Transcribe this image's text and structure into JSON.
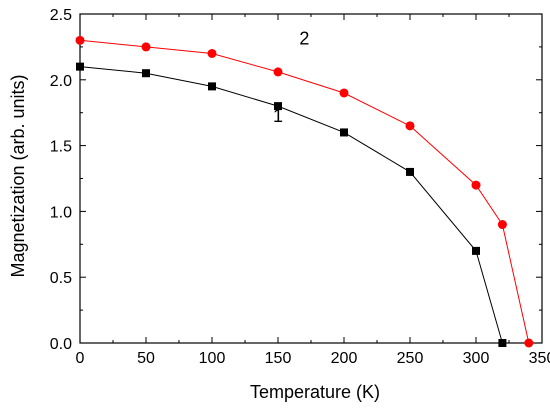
{
  "chart_data": {
    "type": "line",
    "xlabel": "Temperature (K)",
    "ylabel": "Magnetization (arb. units)",
    "xlim": [
      0,
      350
    ],
    "ylim": [
      0,
      2.5
    ],
    "xticks": [
      0,
      50,
      100,
      150,
      200,
      250,
      300,
      350
    ],
    "yticks": [
      0.0,
      0.5,
      1.0,
      1.5,
      2.0,
      2.5
    ],
    "xtick_labels": [
      "0",
      "50",
      "100",
      "150",
      "200",
      "250",
      "300",
      "350"
    ],
    "ytick_labels": [
      "0.0",
      "0.5",
      "1.0",
      "1.5",
      "2.0",
      "2.5"
    ],
    "grid": false,
    "legend": "none",
    "series": [
      {
        "name": "1",
        "color": "#000000",
        "marker": "square",
        "x": [
          0,
          50,
          100,
          150,
          200,
          250,
          300,
          320
        ],
        "y": [
          2.1,
          2.05,
          1.95,
          1.8,
          1.6,
          1.3,
          0.7,
          0.0
        ]
      },
      {
        "name": "2",
        "color": "#ff0000",
        "marker": "circle",
        "x": [
          0,
          50,
          100,
          150,
          200,
          250,
          300,
          320,
          340
        ],
        "y": [
          2.3,
          2.25,
          2.2,
          2.06,
          1.9,
          1.65,
          1.2,
          0.9,
          0.0
        ]
      }
    ],
    "annotations": [
      {
        "text": "1",
        "x": 150,
        "y": 1.68
      },
      {
        "text": "2",
        "x": 170,
        "y": 2.27
      }
    ]
  }
}
